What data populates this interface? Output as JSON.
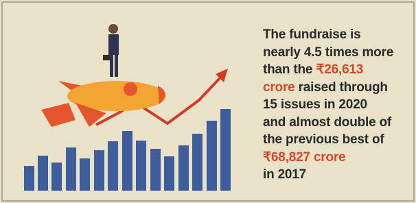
{
  "text": {
    "lines": [
      [
        {
          "text": "The fundraise is",
          "color": "#2a2a2a"
        }
      ],
      [
        {
          "text": "nearly 4.5 times more",
          "color": "#2a2a2a"
        }
      ],
      [
        {
          "text": "than the ",
          "color": "#2a2a2a"
        },
        {
          "text": "₹26,613",
          "color": "#d2482b"
        }
      ],
      [
        {
          "text": "crore",
          "color": "#d2482b"
        },
        {
          "text": " raised through",
          "color": "#2a2a2a"
        }
      ],
      [
        {
          "text": "15 issues in 2020",
          "color": "#2a2a2a"
        }
      ],
      [
        {
          "text": "and almost double of",
          "color": "#2a2a2a"
        }
      ],
      [
        {
          "text": "the previous best of",
          "color": "#2a2a2a"
        }
      ],
      [
        {
          "text": "₹68,827 crore",
          "color": "#d2482b"
        }
      ],
      [
        {
          "text": "in 2017",
          "color": "#2a2a2a"
        }
      ]
    ]
  }
}
